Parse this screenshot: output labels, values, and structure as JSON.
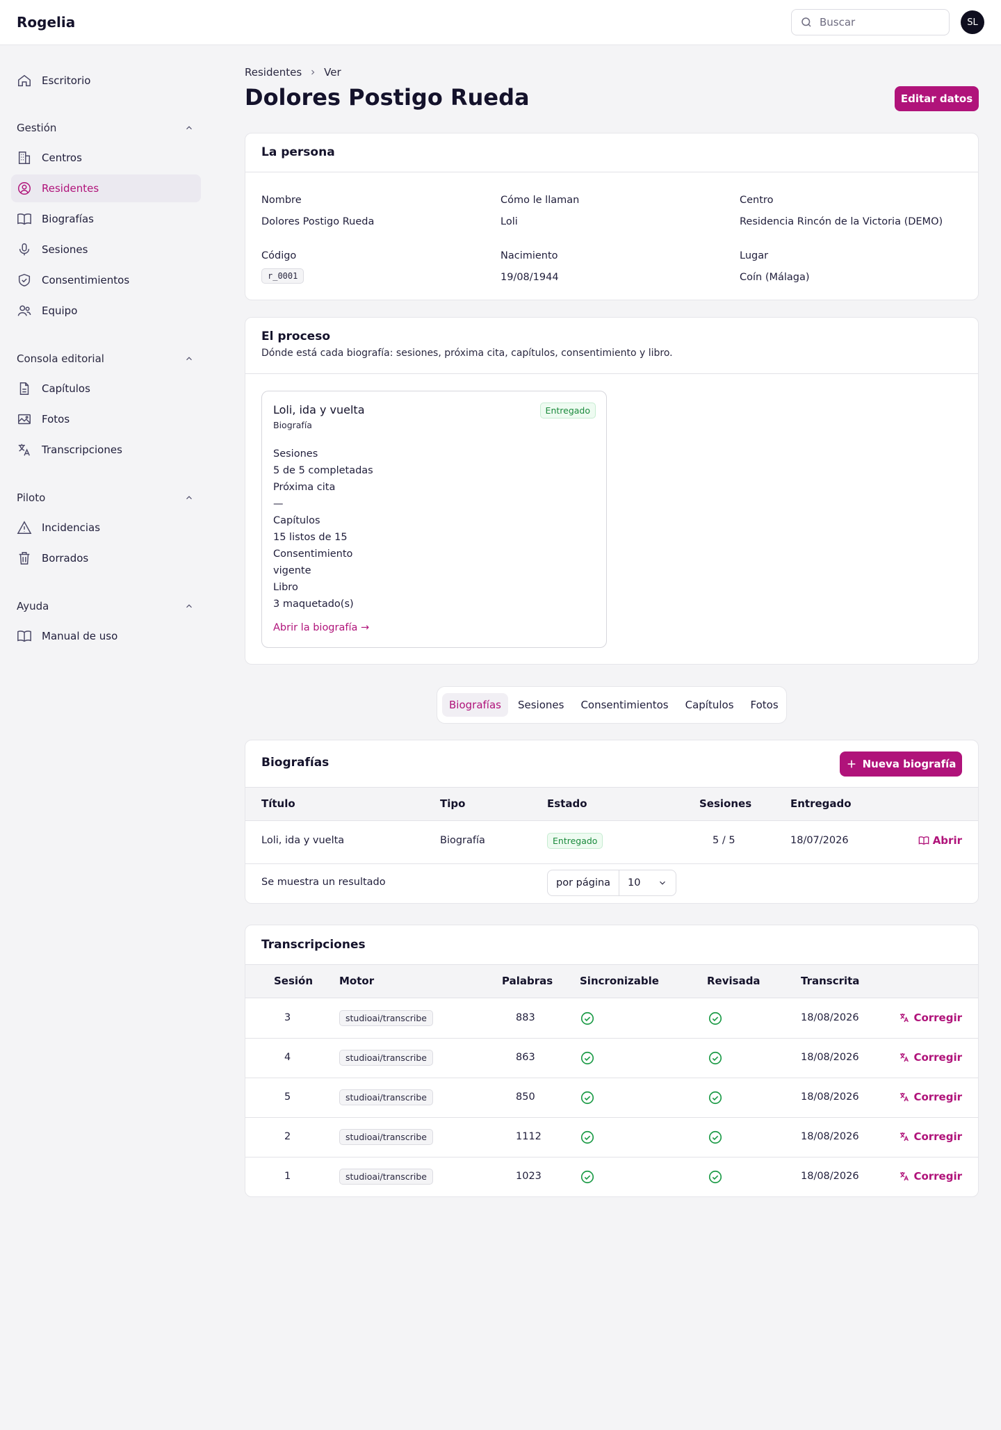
{
  "app": {
    "brand": "Rogelia",
    "search_placeholder": "Buscar",
    "avatar_initials": "SL",
    "accent": "#b0137a"
  },
  "sidebar": {
    "top": [
      {
        "label": "Escritorio",
        "icon": "home-icon"
      }
    ],
    "groups": [
      {
        "title": "Gestión",
        "items": [
          {
            "label": "Centros",
            "icon": "building-icon"
          },
          {
            "label": "Residentes",
            "icon": "user-circle-icon",
            "active": true
          },
          {
            "label": "Biografías",
            "icon": "book-icon"
          },
          {
            "label": "Sesiones",
            "icon": "microphone-icon"
          },
          {
            "label": "Consentimientos",
            "icon": "shield-check-icon"
          },
          {
            "label": "Equipo",
            "icon": "users-icon"
          }
        ]
      },
      {
        "title": "Consola editorial",
        "items": [
          {
            "label": "Capítulos",
            "icon": "document-icon"
          },
          {
            "label": "Fotos",
            "icon": "image-icon"
          },
          {
            "label": "Transcripciones",
            "icon": "translate-icon"
          }
        ]
      },
      {
        "title": "Piloto",
        "items": [
          {
            "label": "Incidencias",
            "icon": "warning-icon"
          },
          {
            "label": "Borrados",
            "icon": "trash-icon"
          }
        ]
      },
      {
        "title": "Ayuda",
        "items": [
          {
            "label": "Manual de uso",
            "icon": "book-open-icon"
          }
        ]
      }
    ]
  },
  "header": {
    "breadcrumb": [
      "Residentes",
      "Ver"
    ],
    "title": "Dolores Postigo Rueda",
    "edit_button": "Editar datos"
  },
  "persona": {
    "title": "La persona",
    "fields": [
      {
        "label": "Nombre",
        "value": "Dolores Postigo Rueda"
      },
      {
        "label": "Cómo le llaman",
        "value": "Loli"
      },
      {
        "label": "Centro",
        "value": "Residencia Rincón de la Victoria (DEMO)"
      },
      {
        "label": "Código",
        "value": "r_0001"
      },
      {
        "label": "Nacimiento",
        "value": "19/08/1944"
      },
      {
        "label": "Lugar",
        "value": "Coín (Málaga)"
      }
    ]
  },
  "proceso": {
    "title": "El proceso",
    "subtitle": "Dónde está cada biografía: sesiones, próxima cita, capítulos, consentimiento y libro.",
    "card": {
      "title": "Loli, ida y vuelta",
      "type": "Biografía",
      "status": "Entregado",
      "lines": [
        "Sesiones",
        "5 de 5 completadas",
        "Próxima cita",
        "—",
        "Capítulos",
        "15 listos de 15",
        "Consentimiento",
        "vigente",
        "Libro",
        "3 maquetado(s)"
      ],
      "link": "Abrir la biografía →"
    }
  },
  "tabs": [
    "Biografías",
    "Sesiones",
    "Consentimientos",
    "Capítulos",
    "Fotos"
  ],
  "biografias": {
    "title": "Biografías",
    "new_button": "Nueva biografía",
    "columns": [
      "Título",
      "Tipo",
      "Estado",
      "Sesiones",
      "Entregado"
    ],
    "rows": [
      {
        "titulo": "Loli, ida y vuelta",
        "tipo": "Biografía",
        "estado": "Entregado",
        "sesiones": "5 / 5",
        "entregado": "18/07/2026",
        "action": "Abrir"
      }
    ],
    "footer_text": "Se muestra un resultado",
    "per_page_label": "por página",
    "per_page_value": "10"
  },
  "transcripciones": {
    "title": "Transcripciones",
    "columns": [
      "Sesión",
      "Motor",
      "Palabras",
      "Sincronizable",
      "Revisada",
      "Transcrita"
    ],
    "action": "Corregir",
    "rows": [
      {
        "sesion": "3",
        "motor": "studioai/transcribe",
        "palabras": "883",
        "sincronizable": true,
        "revisada": true,
        "transcrita": "18/08/2026"
      },
      {
        "sesion": "4",
        "motor": "studioai/transcribe",
        "palabras": "863",
        "sincronizable": true,
        "revisada": true,
        "transcrita": "18/08/2026"
      },
      {
        "sesion": "5",
        "motor": "studioai/transcribe",
        "palabras": "850",
        "sincronizable": true,
        "revisada": true,
        "transcrita": "18/08/2026"
      },
      {
        "sesion": "2",
        "motor": "studioai/transcribe",
        "palabras": "1112",
        "sincronizable": true,
        "revisada": true,
        "transcrita": "18/08/2026"
      },
      {
        "sesion": "1",
        "motor": "studioai/transcribe",
        "palabras": "1023",
        "sincronizable": true,
        "revisada": true,
        "transcrita": "18/08/2026"
      }
    ]
  }
}
